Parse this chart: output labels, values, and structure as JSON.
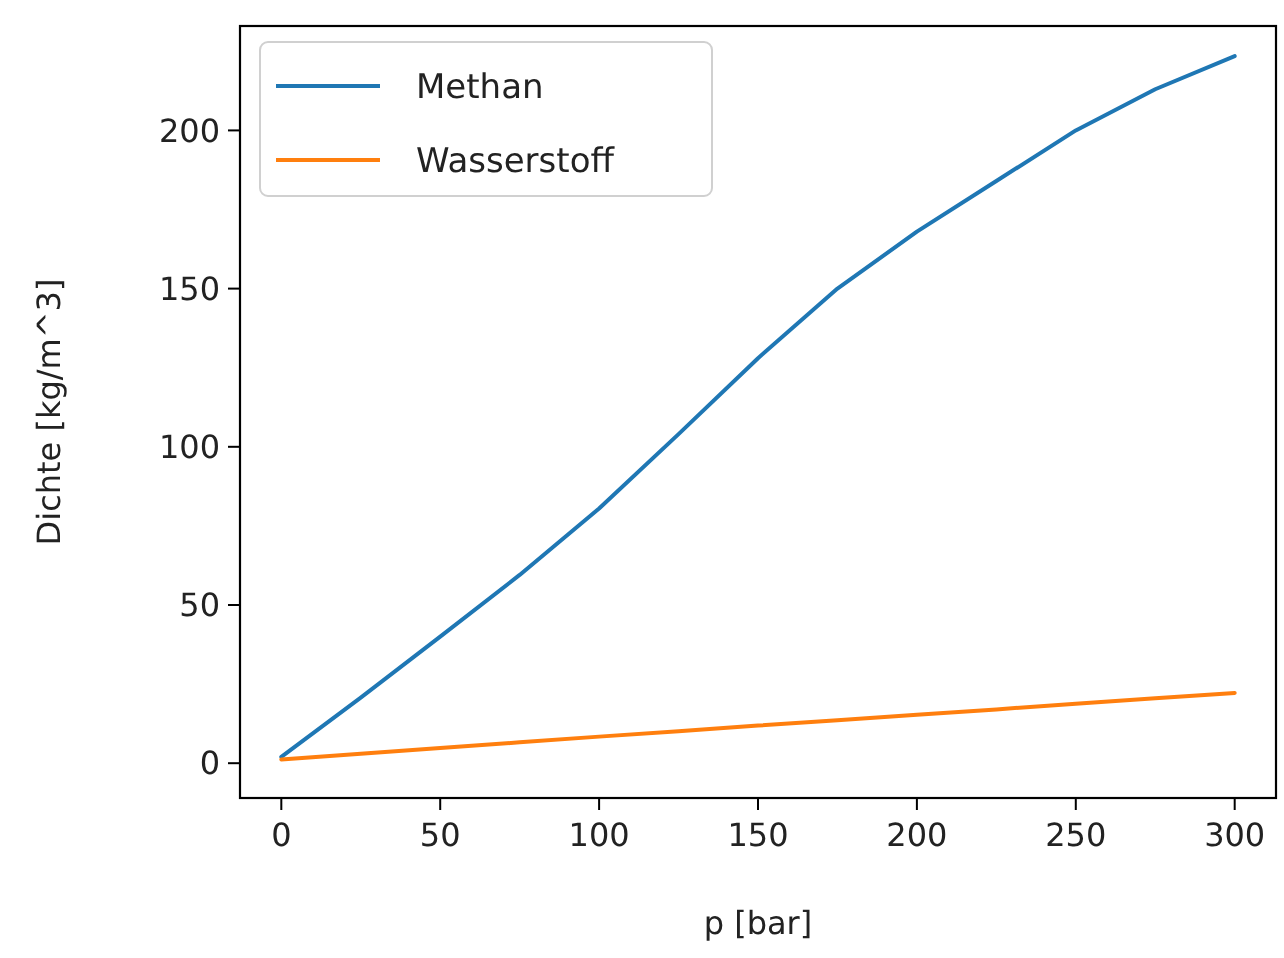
{
  "chart_data": {
    "type": "line",
    "xlabel": "p [bar]",
    "ylabel": "Dichte [kg/m^3]",
    "xlim": [
      -13,
      313
    ],
    "ylim": [
      -11,
      233
    ],
    "xticks": [
      0,
      50,
      100,
      150,
      200,
      250,
      300
    ],
    "yticks": [
      0,
      50,
      100,
      150,
      200
    ],
    "x": [
      0,
      25,
      50,
      75,
      100,
      125,
      150,
      175,
      200,
      225,
      250,
      275,
      300
    ],
    "series": [
      {
        "name": "Methan",
        "color": "#1f77b4",
        "values": [
          2,
          20.7,
          40,
          59.5,
          80.5,
          104,
          128,
          150,
          168,
          184,
          200,
          213,
          223.5
        ]
      },
      {
        "name": "Wasserstoff",
        "color": "#ff7f0e",
        "values": [
          1.2,
          3,
          4.8,
          6.6,
          8.4,
          10.1,
          11.9,
          13.6,
          15.3,
          17,
          18.8,
          20.5,
          22.2
        ]
      }
    ],
    "legend": "top left",
    "grid": false,
    "line_style": "solid",
    "marker": "none"
  }
}
